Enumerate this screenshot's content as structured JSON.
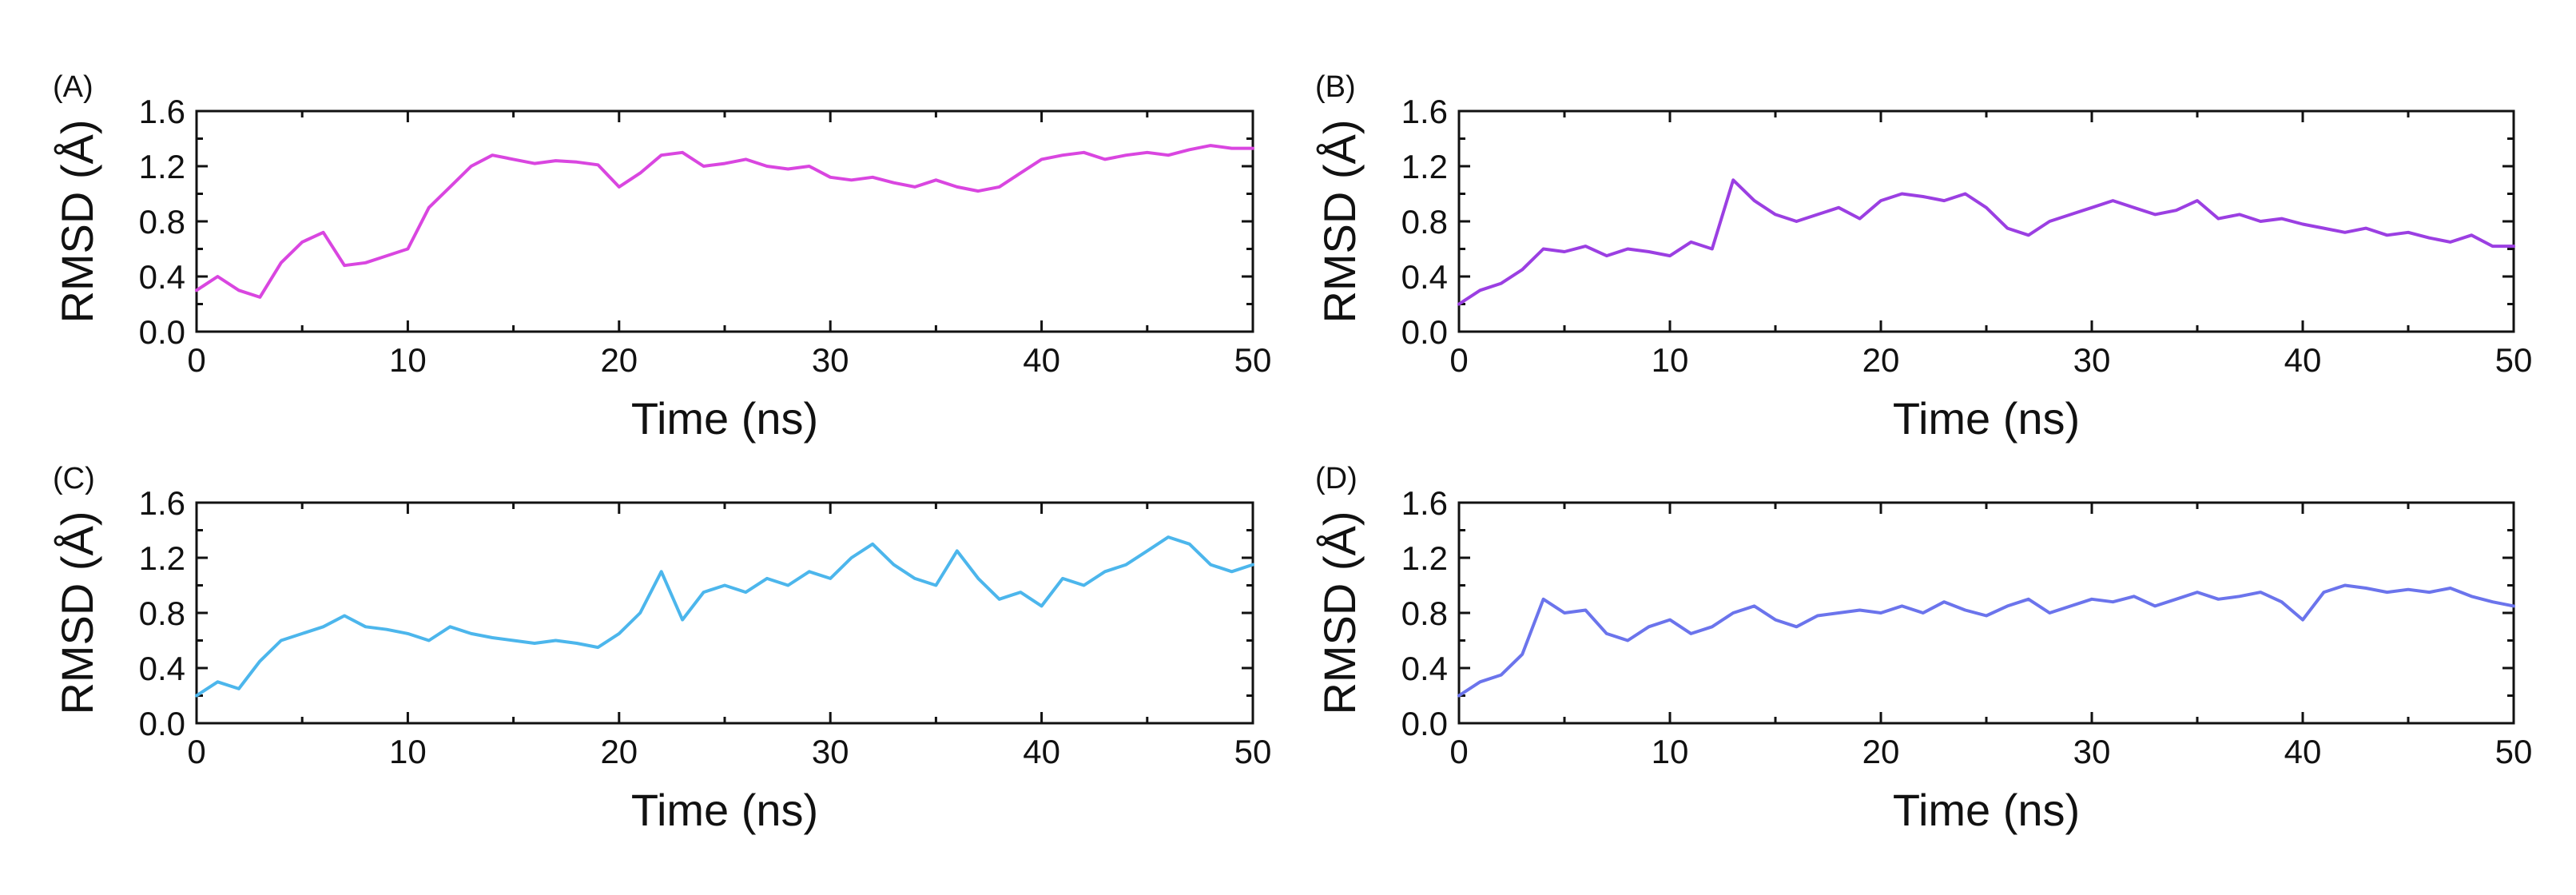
{
  "chart_data": [
    {
      "panel": "(A)",
      "type": "line",
      "color": "#D946E0",
      "xlabel": "Time (ns)",
      "ylabel": "RMSD (Å)",
      "xlim": [
        0,
        50
      ],
      "ylim": [
        0.0,
        1.6
      ],
      "xticks": [
        "0",
        "10",
        "20",
        "30",
        "40",
        "50"
      ],
      "yticks": [
        "0.0",
        "0.4",
        "0.8",
        "1.2",
        "1.6"
      ],
      "series": [
        {
          "name": "A",
          "x": [
            0,
            1,
            2,
            3,
            4,
            5,
            6,
            7,
            8,
            9,
            10,
            11,
            12,
            13,
            14,
            15,
            16,
            17,
            18,
            19,
            20,
            21,
            22,
            23,
            24,
            25,
            26,
            27,
            28,
            29,
            30,
            31,
            32,
            33,
            34,
            35,
            36,
            37,
            38,
            39,
            40,
            41,
            42,
            43,
            44,
            45,
            46,
            47,
            48,
            49,
            50
          ],
          "y": [
            0.3,
            0.4,
            0.3,
            0.25,
            0.5,
            0.65,
            0.72,
            0.48,
            0.5,
            0.55,
            0.6,
            0.9,
            1.05,
            1.2,
            1.28,
            1.25,
            1.22,
            1.24,
            1.23,
            1.21,
            1.05,
            1.15,
            1.28,
            1.3,
            1.2,
            1.22,
            1.25,
            1.2,
            1.18,
            1.2,
            1.12,
            1.1,
            1.12,
            1.08,
            1.05,
            1.1,
            1.05,
            1.02,
            1.05,
            1.15,
            1.25,
            1.28,
            1.3,
            1.25,
            1.28,
            1.3,
            1.28,
            1.32,
            1.35,
            1.33,
            1.33
          ]
        }
      ]
    },
    {
      "panel": "(B)",
      "type": "line",
      "color": "#9B3FE2",
      "xlabel": "Time (ns)",
      "ylabel": "RMSD (Å)",
      "xlim": [
        0,
        50
      ],
      "ylim": [
        0.0,
        1.6
      ],
      "xticks": [
        "0",
        "10",
        "20",
        "30",
        "40",
        "50"
      ],
      "yticks": [
        "0.0",
        "0.4",
        "0.8",
        "1.2",
        "1.6"
      ],
      "series": [
        {
          "name": "B",
          "x": [
            0,
            1,
            2,
            3,
            4,
            5,
            6,
            7,
            8,
            9,
            10,
            11,
            12,
            13,
            14,
            15,
            16,
            17,
            18,
            19,
            20,
            21,
            22,
            23,
            24,
            25,
            26,
            27,
            28,
            29,
            30,
            31,
            32,
            33,
            34,
            35,
            36,
            37,
            38,
            39,
            40,
            41,
            42,
            43,
            44,
            45,
            46,
            47,
            48,
            49,
            50
          ],
          "y": [
            0.2,
            0.3,
            0.35,
            0.45,
            0.6,
            0.58,
            0.62,
            0.55,
            0.6,
            0.58,
            0.55,
            0.65,
            0.6,
            1.1,
            0.95,
            0.85,
            0.8,
            0.85,
            0.9,
            0.82,
            0.95,
            1.0,
            0.98,
            0.95,
            1.0,
            0.9,
            0.75,
            0.7,
            0.8,
            0.85,
            0.9,
            0.95,
            0.9,
            0.85,
            0.88,
            0.95,
            0.82,
            0.85,
            0.8,
            0.82,
            0.78,
            0.75,
            0.72,
            0.75,
            0.7,
            0.72,
            0.68,
            0.65,
            0.7,
            0.62,
            0.62
          ]
        }
      ]
    },
    {
      "panel": "(C)",
      "type": "line",
      "color": "#4CB6EC",
      "xlabel": "Time (ns)",
      "ylabel": "RMSD (Å)",
      "xlim": [
        0,
        50
      ],
      "ylim": [
        0.0,
        1.6
      ],
      "xticks": [
        "0",
        "10",
        "20",
        "30",
        "40",
        "50"
      ],
      "yticks": [
        "0.0",
        "0.4",
        "0.8",
        "1.2",
        "1.6"
      ],
      "series": [
        {
          "name": "C",
          "x": [
            0,
            1,
            2,
            3,
            4,
            5,
            6,
            7,
            8,
            9,
            10,
            11,
            12,
            13,
            14,
            15,
            16,
            17,
            18,
            19,
            20,
            21,
            22,
            23,
            24,
            25,
            26,
            27,
            28,
            29,
            30,
            31,
            32,
            33,
            34,
            35,
            36,
            37,
            38,
            39,
            40,
            41,
            42,
            43,
            44,
            45,
            46,
            47,
            48,
            49,
            50
          ],
          "y": [
            0.2,
            0.3,
            0.25,
            0.45,
            0.6,
            0.65,
            0.7,
            0.78,
            0.7,
            0.68,
            0.65,
            0.6,
            0.7,
            0.65,
            0.62,
            0.6,
            0.58,
            0.6,
            0.58,
            0.55,
            0.65,
            0.8,
            1.1,
            0.75,
            0.95,
            1.0,
            0.95,
            1.05,
            1.0,
            1.1,
            1.05,
            1.2,
            1.3,
            1.15,
            1.05,
            1.0,
            1.25,
            1.05,
            0.9,
            0.95,
            0.85,
            1.05,
            1.0,
            1.1,
            1.15,
            1.25,
            1.35,
            1.3,
            1.15,
            1.1,
            1.15
          ]
        }
      ]
    },
    {
      "panel": "(D)",
      "type": "line",
      "color": "#6B74EC",
      "xlabel": "Time (ns)",
      "ylabel": "RMSD (Å)",
      "xlim": [
        0,
        50
      ],
      "ylim": [
        0.0,
        1.6
      ],
      "xticks": [
        "0",
        "10",
        "20",
        "30",
        "40",
        "50"
      ],
      "yticks": [
        "0.0",
        "0.4",
        "0.8",
        "1.2",
        "1.6"
      ],
      "series": [
        {
          "name": "D",
          "x": [
            0,
            1,
            2,
            3,
            4,
            5,
            6,
            7,
            8,
            9,
            10,
            11,
            12,
            13,
            14,
            15,
            16,
            17,
            18,
            19,
            20,
            21,
            22,
            23,
            24,
            25,
            26,
            27,
            28,
            29,
            30,
            31,
            32,
            33,
            34,
            35,
            36,
            37,
            38,
            39,
            40,
            41,
            42,
            43,
            44,
            45,
            46,
            47,
            48,
            49,
            50
          ],
          "y": [
            0.2,
            0.3,
            0.35,
            0.5,
            0.9,
            0.8,
            0.82,
            0.65,
            0.6,
            0.7,
            0.75,
            0.65,
            0.7,
            0.8,
            0.85,
            0.75,
            0.7,
            0.78,
            0.8,
            0.82,
            0.8,
            0.85,
            0.8,
            0.88,
            0.82,
            0.78,
            0.85,
            0.9,
            0.8,
            0.85,
            0.9,
            0.88,
            0.92,
            0.85,
            0.9,
            0.95,
            0.9,
            0.92,
            0.95,
            0.88,
            0.75,
            0.95,
            1.0,
            0.98,
            0.95,
            0.97,
            0.95,
            0.98,
            0.92,
            0.88,
            0.85
          ]
        }
      ]
    }
  ]
}
